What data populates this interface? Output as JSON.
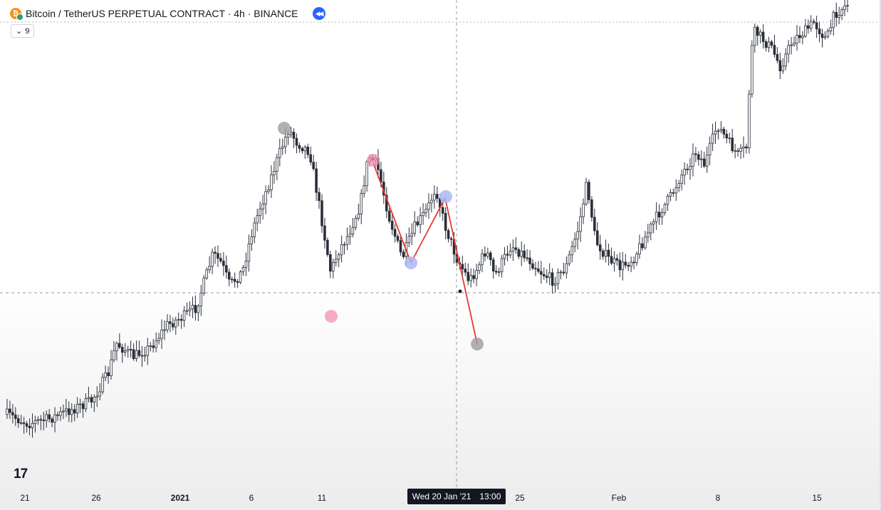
{
  "header": {
    "title": "Bitcoin / TetherUS PERPETUAL CONTRACT · 4h · BINANCE",
    "coin_icon": "bitcoin-tether-icon",
    "rewind_icon": "double-chevron-left-icon"
  },
  "indicator": {
    "chevron": "⌄",
    "value": "9"
  },
  "logo": {
    "text": "17"
  },
  "crosshair": {
    "date": "Wed 20 Jan '21",
    "time": "13:00"
  },
  "chart_data": {
    "type": "candlestick",
    "symbol": "BTCUSDT Perpetual",
    "interval": "4h",
    "exchange": "BINANCE",
    "x_ticks": [
      {
        "label": "21",
        "bold": false
      },
      {
        "label": "26",
        "bold": false
      },
      {
        "label": "2021",
        "bold": true
      },
      {
        "label": "6",
        "bold": false
      },
      {
        "label": "11",
        "bold": false
      },
      {
        "label": "25",
        "bold": false
      },
      {
        "label": "Feb",
        "bold": false
      },
      {
        "label": "8",
        "bold": false
      },
      {
        "label": "15",
        "bold": false
      }
    ],
    "price_path": [
      [
        0,
        0.92
      ],
      [
        0.025,
        0.94
      ],
      [
        0.05,
        0.93
      ],
      [
        0.075,
        0.91
      ],
      [
        0.1,
        0.89
      ],
      [
        0.12,
        0.83
      ],
      [
        0.13,
        0.76
      ],
      [
        0.15,
        0.79
      ],
      [
        0.17,
        0.77
      ],
      [
        0.19,
        0.72
      ],
      [
        0.21,
        0.7
      ],
      [
        0.225,
        0.68
      ],
      [
        0.235,
        0.62
      ],
      [
        0.245,
        0.56
      ],
      [
        0.255,
        0.58
      ],
      [
        0.265,
        0.63
      ],
      [
        0.28,
        0.6
      ],
      [
        0.29,
        0.52
      ],
      [
        0.3,
        0.46
      ],
      [
        0.31,
        0.41
      ],
      [
        0.325,
        0.33
      ],
      [
        0.335,
        0.28
      ],
      [
        0.345,
        0.31
      ],
      [
        0.36,
        0.33
      ],
      [
        0.375,
        0.49
      ],
      [
        0.385,
        0.6
      ],
      [
        0.395,
        0.55
      ],
      [
        0.405,
        0.52
      ],
      [
        0.42,
        0.45
      ],
      [
        0.43,
        0.34
      ],
      [
        0.44,
        0.36
      ],
      [
        0.455,
        0.48
      ],
      [
        0.47,
        0.57
      ],
      [
        0.485,
        0.5
      ],
      [
        0.5,
        0.46
      ],
      [
        0.51,
        0.41
      ],
      [
        0.52,
        0.49
      ],
      [
        0.535,
        0.57
      ],
      [
        0.55,
        0.62
      ],
      [
        0.56,
        0.59
      ],
      [
        0.57,
        0.55
      ],
      [
        0.58,
        0.61
      ],
      [
        0.6,
        0.54
      ],
      [
        0.62,
        0.57
      ],
      [
        0.635,
        0.6
      ],
      [
        0.65,
        0.62
      ],
      [
        0.665,
        0.59
      ],
      [
        0.68,
        0.5
      ],
      [
        0.69,
        0.4
      ],
      [
        0.7,
        0.53
      ],
      [
        0.715,
        0.57
      ],
      [
        0.73,
        0.59
      ],
      [
        0.745,
        0.57
      ],
      [
        0.76,
        0.52
      ],
      [
        0.775,
        0.47
      ],
      [
        0.79,
        0.43
      ],
      [
        0.8,
        0.39
      ],
      [
        0.81,
        0.36
      ],
      [
        0.82,
        0.33
      ],
      [
        0.83,
        0.36
      ],
      [
        0.845,
        0.27
      ],
      [
        0.855,
        0.3
      ],
      [
        0.87,
        0.34
      ],
      [
        0.88,
        0.32
      ],
      [
        0.885,
        0.11
      ],
      [
        0.89,
        0.06
      ],
      [
        0.9,
        0.08
      ],
      [
        0.91,
        0.1
      ],
      [
        0.92,
        0.14
      ],
      [
        0.935,
        0.08
      ],
      [
        0.95,
        0.06
      ],
      [
        0.96,
        0.04
      ],
      [
        0.975,
        0.08
      ],
      [
        0.985,
        0.02
      ],
      [
        1.0,
        0.0
      ]
    ],
    "markers": [
      {
        "color": "#9e9e9e",
        "opacity": 0.8
      },
      {
        "color": "#f48fb1",
        "opacity": 0.75
      },
      {
        "color": "#f48fb1",
        "opacity": 0.75
      },
      {
        "color": "#aab8f2",
        "opacity": 0.85
      },
      {
        "color": "#aab8f2",
        "opacity": 0.85
      },
      {
        "color": "#9e9e9e",
        "opacity": 0.8
      }
    ],
    "pattern_line_color": "#e53935",
    "candle_color": "#2a2e39",
    "grid": false,
    "legend": "none"
  }
}
